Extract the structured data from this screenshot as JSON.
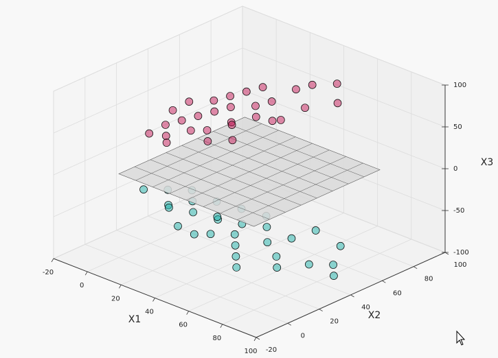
{
  "chart_data": {
    "type": "scatter3d",
    "xlabel": "X1",
    "ylabel": "X2",
    "zlabel": "X3",
    "xlim": [
      -20,
      100
    ],
    "ylim": [
      -20,
      100
    ],
    "zlim": [
      -100,
      100
    ],
    "xticks": [
      -20,
      0,
      20,
      40,
      60,
      80,
      100
    ],
    "yticks": [
      -20,
      0,
      20,
      40,
      60,
      80,
      100
    ],
    "zticks": [
      -100,
      -50,
      0,
      50,
      100
    ],
    "grid": true,
    "plane": {
      "xlim": [
        0,
        80
      ],
      "ylim": [
        0,
        80
      ],
      "z": 0,
      "color": "#d9d9d9"
    },
    "series": [
      {
        "color": "#20b2aa",
        "x": [
          20,
          30,
          40,
          25,
          35,
          50,
          45,
          60,
          55,
          70,
          65,
          80,
          75,
          85,
          15,
          10,
          30,
          40,
          50,
          20,
          60,
          70,
          35,
          45,
          90,
          55,
          25,
          65,
          40,
          80
        ],
        "y": [
          10,
          15,
          20,
          5,
          25,
          20,
          10,
          30,
          15,
          25,
          40,
          35,
          20,
          45,
          15,
          5,
          30,
          35,
          40,
          25,
          10,
          50,
          0,
          30,
          40,
          35,
          20,
          5,
          5,
          55
        ],
        "z": [
          -30,
          -35,
          -40,
          -25,
          -45,
          -50,
          -45,
          -60,
          -55,
          -65,
          -60,
          -75,
          -70,
          -80,
          -20,
          -15,
          -35,
          -40,
          -45,
          -25,
          -60,
          -55,
          -35,
          -50,
          -85,
          -50,
          -30,
          -65,
          -45,
          -70
        ]
      },
      {
        "color": "#c51b5a",
        "x": [
          0,
          5,
          10,
          -5,
          15,
          20,
          10,
          25,
          30,
          0,
          -10,
          5,
          15,
          20,
          35,
          40,
          30,
          25,
          10,
          -5,
          45,
          50,
          35,
          20,
          5,
          15,
          -10,
          40,
          30,
          55
        ],
        "y": [
          40,
          45,
          50,
          35,
          55,
          50,
          35,
          60,
          65,
          30,
          30,
          25,
          40,
          70,
          75,
          80,
          55,
          45,
          60,
          50,
          70,
          85,
          60,
          35,
          55,
          65,
          45,
          60,
          40,
          80
        ],
        "z": [
          30,
          35,
          40,
          25,
          45,
          35,
          30,
          50,
          55,
          20,
          15,
          20,
          30,
          60,
          65,
          70,
          45,
          40,
          50,
          40,
          55,
          75,
          40,
          25,
          45,
          55,
          30,
          45,
          30,
          60
        ]
      }
    ]
  }
}
